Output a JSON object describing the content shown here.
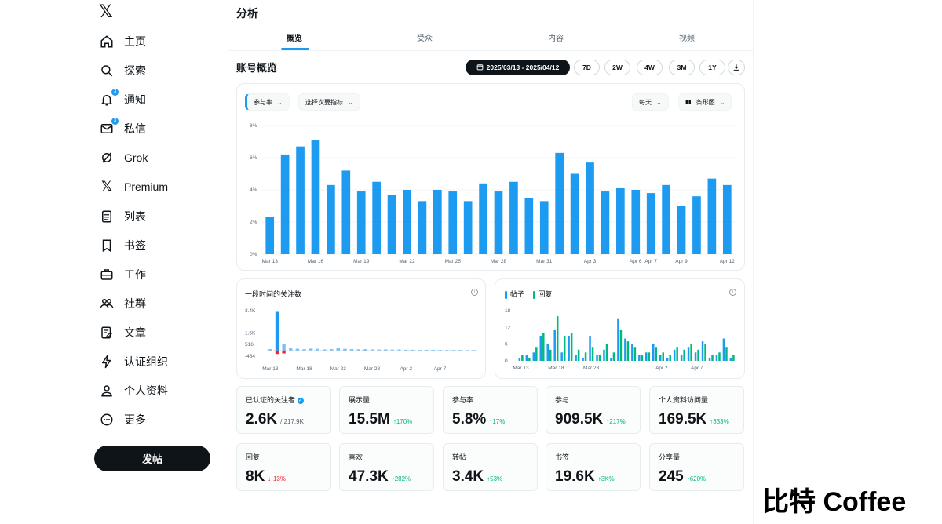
{
  "sidebar": {
    "logo": "𝕏",
    "items": [
      {
        "label": "主页",
        "icon": "home-icon"
      },
      {
        "label": "探索",
        "icon": "search-icon"
      },
      {
        "label": "通知",
        "icon": "bell-icon",
        "badge": "3"
      },
      {
        "label": "私信",
        "icon": "mail-icon",
        "badge": "3"
      },
      {
        "label": "Grok",
        "icon": "grok-icon"
      },
      {
        "label": "Premium",
        "icon": "x-premium-icon"
      },
      {
        "label": "列表",
        "icon": "list-icon"
      },
      {
        "label": "书签",
        "icon": "bookmark-icon"
      },
      {
        "label": "工作",
        "icon": "briefcase-icon"
      },
      {
        "label": "社群",
        "icon": "community-icon"
      },
      {
        "label": "文章",
        "icon": "article-icon"
      },
      {
        "label": "认证组织",
        "icon": "lightning-icon"
      },
      {
        "label": "个人资料",
        "icon": "profile-icon"
      },
      {
        "label": "更多",
        "icon": "more-icon"
      }
    ],
    "post_label": "发帖"
  },
  "header": {
    "title": "分析",
    "tabs": [
      {
        "label": "概览",
        "active": true
      },
      {
        "label": "受众",
        "active": false
      },
      {
        "label": "内容",
        "active": false
      },
      {
        "label": "视频",
        "active": false
      }
    ]
  },
  "overview": {
    "title": "账号概览",
    "date_range": "2025/03/13 - 2025/04/12",
    "ranges": [
      "7D",
      "2W",
      "4W",
      "3M",
      "1Y"
    ]
  },
  "main_chart": {
    "metric": "参与率",
    "secondary": "选择次要指标",
    "interval": "每天",
    "chart_type": "条形图",
    "color": "#1d9bf0"
  },
  "chart_data": [
    {
      "type": "bar",
      "yticks": [
        "8%",
        "6%",
        "4%",
        "2%",
        "0%"
      ],
      "ylim": [
        0,
        8
      ],
      "xticks": [
        "Mar 13",
        "Mar 16",
        "Mar 19",
        "Mar 22",
        "Mar 25",
        "Mar 28",
        "Mar 31",
        "Apr 3",
        "Apr 6",
        "Apr 7",
        "Apr 9",
        "Apr 12"
      ],
      "categories": [
        "Mar 13",
        "Mar 14",
        "Mar 15",
        "Mar 16",
        "Mar 17",
        "Mar 18",
        "Mar 19",
        "Mar 20",
        "Mar 21",
        "Mar 22",
        "Mar 23",
        "Mar 24",
        "Mar 25",
        "Mar 26",
        "Mar 27",
        "Mar 28",
        "Mar 29",
        "Mar 30",
        "Mar 31",
        "Apr 1",
        "Apr 2",
        "Apr 3",
        "Apr 4",
        "Apr 5",
        "Apr 6",
        "Apr 7",
        "Apr 8",
        "Apr 9",
        "Apr 10",
        "Apr 11",
        "Apr 12"
      ],
      "values": [
        2.3,
        6.2,
        6.7,
        7.1,
        4.3,
        5.2,
        3.9,
        4.5,
        3.7,
        4.0,
        3.3,
        4.0,
        3.9,
        3.3,
        4.4,
        3.9,
        4.5,
        3.5,
        3.3,
        6.3,
        5.0,
        5.7,
        3.9,
        4.1,
        4.0,
        3.8,
        4.3,
        3.0,
        3.6,
        4.7,
        4.3
      ]
    },
    {
      "type": "bar",
      "title": "一段时间的关注数",
      "yticks": [
        "3.4K",
        "1.5K",
        "516",
        "-484"
      ],
      "ylim": [
        -484,
        3400
      ],
      "xticks": [
        "Mar 13",
        "Mar 18",
        "Mar 23",
        "Mar 28",
        "Apr 2",
        "Apr 7"
      ],
      "values": [
        120,
        3300,
        550,
        220,
        150,
        110,
        160,
        140,
        90,
        120,
        250,
        140,
        120,
        100,
        110,
        90,
        80,
        90,
        70,
        80,
        60,
        60,
        50,
        55,
        50,
        50,
        45,
        40,
        40,
        40,
        35
      ],
      "negative": [
        0,
        -300,
        -250,
        0,
        0,
        0,
        0,
        0,
        0,
        0,
        0,
        0,
        0,
        0,
        0,
        0,
        0,
        0,
        0,
        0,
        0,
        0,
        0,
        0,
        0,
        0,
        0,
        0,
        0,
        0,
        0
      ]
    },
    {
      "type": "bar",
      "legend": [
        "帖子",
        "回复"
      ],
      "yticks": [
        "18",
        "12",
        "6",
        "0"
      ],
      "ylim": [
        0,
        18
      ],
      "xticks": [
        "Mar 13",
        "Mar 18",
        "Mar 23",
        "Apr 2",
        "Apr 7"
      ],
      "series": [
        {
          "name": "帖子",
          "color": "#1d9bf0",
          "values": [
            1,
            2,
            3,
            9,
            6,
            11,
            3,
            9,
            2,
            1,
            9,
            2,
            4,
            1,
            15,
            8,
            6,
            2,
            3,
            6,
            2,
            1,
            4,
            2,
            5,
            3,
            7,
            1,
            2,
            8,
            1
          ]
        },
        {
          "name": "回复",
          "color": "#00ba7c",
          "values": [
            2,
            1,
            5,
            10,
            4,
            16,
            9,
            10,
            4,
            3,
            5,
            2,
            6,
            3,
            11,
            7,
            5,
            2,
            3,
            5,
            3,
            2,
            5,
            4,
            6,
            4,
            6,
            2,
            3,
            5,
            2
          ]
        }
      ]
    }
  ],
  "followers_chart": {
    "title": "一段时间的关注数",
    "info": "i"
  },
  "posts_chart": {
    "info": "i"
  },
  "stats": [
    {
      "label": "已认证的关注者",
      "value": "2.6K",
      "sub": "/ 217.9K",
      "trend": "none",
      "verified": true
    },
    {
      "label": "展示量",
      "value": "15.5M",
      "sub": "↑170%",
      "trend": "up"
    },
    {
      "label": "参与率",
      "value": "5.8%",
      "sub": "↑17%",
      "trend": "up"
    },
    {
      "label": "参与",
      "value": "909.5K",
      "sub": "↑217%",
      "trend": "up"
    },
    {
      "label": "个人资料访问量",
      "value": "169.5K",
      "sub": "↑333%",
      "trend": "up"
    },
    {
      "label": "回复",
      "value": "8K",
      "sub": "↓-13%",
      "trend": "down"
    },
    {
      "label": "喜欢",
      "value": "47.3K",
      "sub": "↑282%",
      "trend": "up"
    },
    {
      "label": "转帖",
      "value": "3.4K",
      "sub": "↑53%",
      "trend": "up"
    },
    {
      "label": "书签",
      "value": "19.6K",
      "sub": "↑3K%",
      "trend": "up"
    },
    {
      "label": "分享量",
      "value": "245",
      "sub": "↑620%",
      "trend": "up"
    }
  ],
  "watermark": "比特 Coffee"
}
